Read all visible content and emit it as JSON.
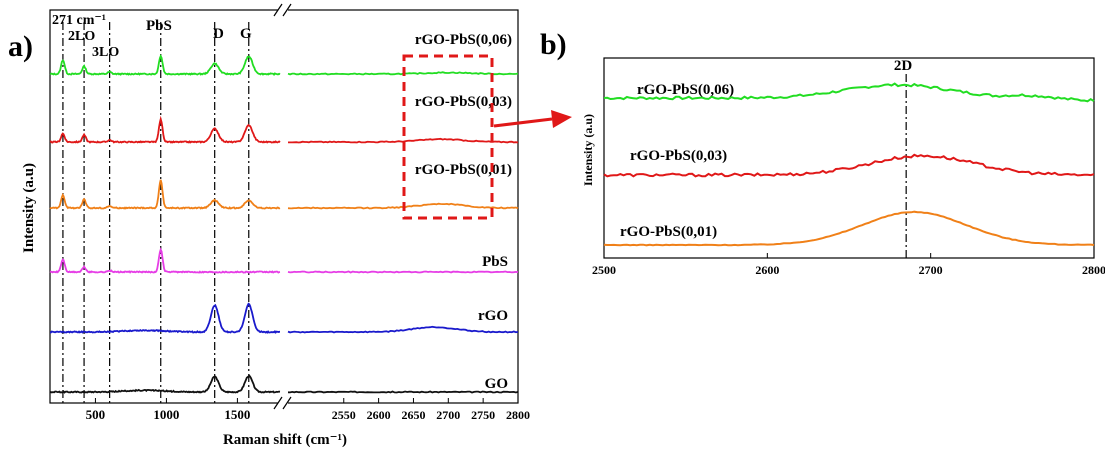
{
  "panels": {
    "a": {
      "label": "a)",
      "chart_data": {
        "type": "line",
        "xlabel": "Raman shift (cm⁻¹)",
        "ylabel": "Intensity (a.u)",
        "x_axis": "broken",
        "xlim_left": [
          180,
          1800
        ],
        "xlim_right": [
          2470,
          2800
        ],
        "xticks_left": [
          500,
          1000,
          1500
        ],
        "xticks_right": [
          2550,
          2600,
          2650,
          2700,
          2750,
          2800
        ],
        "y_ticks_shown": false,
        "series": [
          {
            "name": "rGO-PbS(0,06)",
            "color": "#22dd22",
            "peaks": [
              [
                271,
                1.0
              ],
              [
                420,
                0.55
              ],
              [
                600,
                0.15
              ],
              [
                960,
                1.3
              ],
              [
                1340,
                0.75
              ],
              [
                1580,
                1.25
              ]
            ],
            "peaks_right": [
              [
                2700,
                0.1
              ]
            ]
          },
          {
            "name": "rGO-PbS(0,03)",
            "color": "#e01818",
            "peaks": [
              [
                271,
                0.6
              ],
              [
                420,
                0.5
              ],
              [
                600,
                0.15
              ],
              [
                960,
                1.6
              ],
              [
                1340,
                0.95
              ],
              [
                1580,
                1.2
              ]
            ],
            "peaks_right": [
              [
                2690,
                0.2
              ]
            ]
          },
          {
            "name": "rGO-PbS(0,01)",
            "color": "#f08018",
            "peaks": [
              [
                271,
                0.9
              ],
              [
                420,
                0.6
              ],
              [
                600,
                0.15
              ],
              [
                960,
                2.0
              ],
              [
                1340,
                0.55
              ],
              [
                1580,
                0.55
              ]
            ],
            "peaks_right": [
              [
                2690,
                0.3
              ]
            ]
          },
          {
            "name": "PbS",
            "color": "#e63ee6",
            "peaks": [
              [
                271,
                0.9
              ],
              [
                420,
                0.35
              ],
              [
                600,
                0.1
              ],
              [
                960,
                1.6
              ]
            ],
            "peaks_right": []
          },
          {
            "name": "rGO",
            "color": "#1a1acc",
            "peaks": [
              [
                1340,
                1.9
              ],
              [
                1580,
                2.0
              ]
            ],
            "peaks_right": [
              [
                2680,
                0.35
              ]
            ]
          },
          {
            "name": "GO",
            "color": "#111111",
            "peaks": [
              [
                1340,
                1.1
              ],
              [
                1580,
                1.15
              ]
            ],
            "peaks_right": []
          }
        ],
        "reference_lines": [
          271,
          420,
          600,
          960,
          1340,
          1580
        ],
        "annotations": [
          "271 cm⁻¹",
          "2LO",
          "3LO",
          "PbS",
          "D",
          "G"
        ],
        "highlight_box": {
          "x_range": [
            2640,
            2765
          ],
          "color": "#e01818",
          "style": "dashed"
        }
      }
    },
    "b": {
      "label": "b)",
      "chart_data": {
        "type": "line",
        "xlabel": "",
        "ylabel": "Intensity (a.u)",
        "xlim": [
          2500,
          2800
        ],
        "xticks": [
          2500,
          2600,
          2700,
          2800
        ],
        "y_ticks_shown": false,
        "series": [
          {
            "name": "rGO-PbS(0,06)",
            "color": "#22dd22",
            "peak": 2680,
            "amplitude": 0.6
          },
          {
            "name": "rGO-PbS(0,03)",
            "color": "#e01818",
            "peak": 2695,
            "amplitude": 0.8
          },
          {
            "name": "rGO-PbS(0,01)",
            "color": "#f08018",
            "peak": 2690,
            "amplitude": 1.0
          }
        ],
        "reference_line": 2685,
        "annotation": "2D"
      }
    },
    "arrow_color": "#e01818"
  }
}
